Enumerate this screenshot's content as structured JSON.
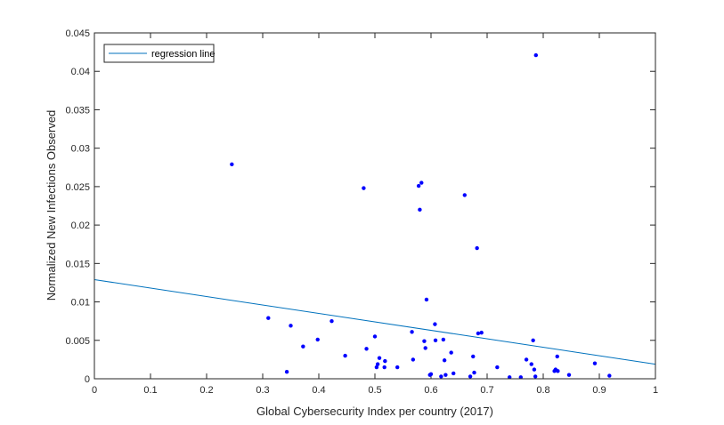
{
  "chart_data": {
    "type": "scatter",
    "xlabel": "Global Cybersecurity Index per country (2017)",
    "ylabel": "Normalized New Infections Observed",
    "xlim": [
      0,
      1
    ],
    "ylim": [
      0,
      0.045
    ],
    "x_ticks": [
      "0",
      "0.1",
      "0.2",
      "0.3",
      "0.4",
      "0.5",
      "0.6",
      "0.7",
      "0.8",
      "0.9",
      "1"
    ],
    "y_ticks": [
      "0",
      "0.005",
      "0.01",
      "0.015",
      "0.02",
      "0.025",
      "0.03",
      "0.035",
      "0.04",
      "0.045"
    ],
    "grid": false,
    "legend": {
      "position": "top-left",
      "entries": [
        "regression line"
      ]
    },
    "colors": {
      "points": "#0000ff",
      "regression": "#0072bd",
      "axis": "#262626"
    },
    "points": [
      {
        "x": 0.245,
        "y": 0.0279
      },
      {
        "x": 0.31,
        "y": 0.0079
      },
      {
        "x": 0.343,
        "y": 0.0009
      },
      {
        "x": 0.35,
        "y": 0.0069
      },
      {
        "x": 0.372,
        "y": 0.0042
      },
      {
        "x": 0.398,
        "y": 0.0051
      },
      {
        "x": 0.423,
        "y": 0.0075
      },
      {
        "x": 0.447,
        "y": 0.003
      },
      {
        "x": 0.48,
        "y": 0.0248
      },
      {
        "x": 0.485,
        "y": 0.0039
      },
      {
        "x": 0.5,
        "y": 0.0055
      },
      {
        "x": 0.503,
        "y": 0.0015
      },
      {
        "x": 0.505,
        "y": 0.0019
      },
      {
        "x": 0.508,
        "y": 0.0027
      },
      {
        "x": 0.517,
        "y": 0.0015
      },
      {
        "x": 0.518,
        "y": 0.0023
      },
      {
        "x": 0.54,
        "y": 0.0015
      },
      {
        "x": 0.566,
        "y": 0.0061
      },
      {
        "x": 0.568,
        "y": 0.0025
      },
      {
        "x": 0.578,
        "y": 0.0251
      },
      {
        "x": 0.58,
        "y": 0.022
      },
      {
        "x": 0.583,
        "y": 0.0255
      },
      {
        "x": 0.588,
        "y": 0.0049
      },
      {
        "x": 0.59,
        "y": 0.004
      },
      {
        "x": 0.592,
        "y": 0.0103
      },
      {
        "x": 0.598,
        "y": 0.0005
      },
      {
        "x": 0.6,
        "y": 0.0006
      },
      {
        "x": 0.607,
        "y": 0.0071
      },
      {
        "x": 0.608,
        "y": 0.005
      },
      {
        "x": 0.618,
        "y": 0.0003
      },
      {
        "x": 0.622,
        "y": 0.0051
      },
      {
        "x": 0.624,
        "y": 0.0024
      },
      {
        "x": 0.626,
        "y": 0.0005
      },
      {
        "x": 0.636,
        "y": 0.0034
      },
      {
        "x": 0.64,
        "y": 0.0007
      },
      {
        "x": 0.66,
        "y": 0.0239
      },
      {
        "x": 0.67,
        "y": 0.0003
      },
      {
        "x": 0.675,
        "y": 0.0029
      },
      {
        "x": 0.677,
        "y": 0.0008
      },
      {
        "x": 0.682,
        "y": 0.017
      },
      {
        "x": 0.684,
        "y": 0.0059
      },
      {
        "x": 0.69,
        "y": 0.006
      },
      {
        "x": 0.718,
        "y": 0.0015
      },
      {
        "x": 0.74,
        "y": 0.0002
      },
      {
        "x": 0.76,
        "y": 0.0002
      },
      {
        "x": 0.77,
        "y": 0.0025
      },
      {
        "x": 0.779,
        "y": 0.0019
      },
      {
        "x": 0.782,
        "y": 0.005
      },
      {
        "x": 0.784,
        "y": 0.0012
      },
      {
        "x": 0.786,
        "y": 0.0003
      },
      {
        "x": 0.787,
        "y": 0.0421
      },
      {
        "x": 0.82,
        "y": 0.001
      },
      {
        "x": 0.822,
        "y": 0.0012
      },
      {
        "x": 0.825,
        "y": 0.0029
      },
      {
        "x": 0.826,
        "y": 0.001
      },
      {
        "x": 0.846,
        "y": 0.0005
      },
      {
        "x": 0.892,
        "y": 0.002
      },
      {
        "x": 0.918,
        "y": 0.0004
      }
    ],
    "regression_line": {
      "x": [
        0,
        1
      ],
      "y": [
        0.0129,
        0.0019
      ]
    }
  }
}
